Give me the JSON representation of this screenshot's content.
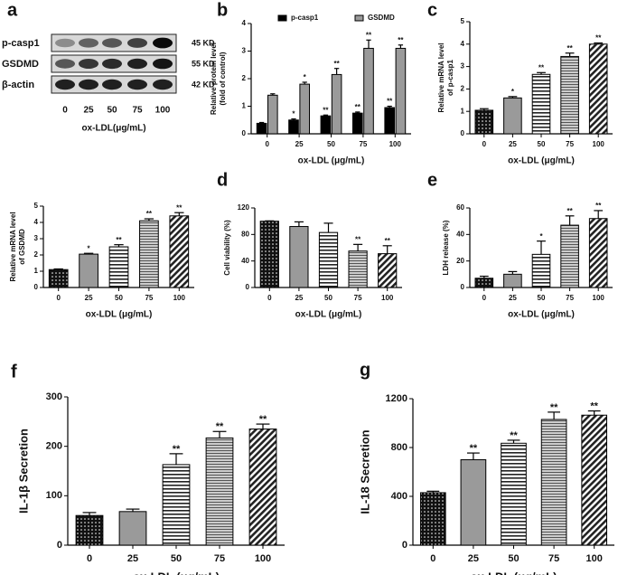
{
  "blot": {
    "panel": "a",
    "rows": [
      {
        "label": "p-casp1",
        "size": "45 KD"
      },
      {
        "label": "GSDMD",
        "size": "55 KD"
      },
      {
        "label": "β-actin",
        "size": "42 KD"
      }
    ],
    "categories": [
      "0",
      "25",
      "50",
      "75",
      "100"
    ],
    "xlabel": "ox-LDL(μg/mL)"
  },
  "chart_data": [
    {
      "type": "bar",
      "panel": "b",
      "ylabel": [
        "Relative protein level",
        "(fold of control)"
      ],
      "xlabel": "ox-LDL (μg/mL)",
      "categories": [
        "0",
        "25",
        "50",
        "75",
        "100"
      ],
      "ylim": [
        0,
        4
      ],
      "yticks": [
        0,
        1,
        2,
        3,
        4
      ],
      "series": [
        {
          "name": "p-casp1",
          "color": "#000000",
          "values": [
            0.38,
            0.5,
            0.65,
            0.75,
            0.95
          ],
          "errors": [
            0.03,
            0.04,
            0.03,
            0.04,
            0.05
          ],
          "significance": [
            null,
            "*",
            "**",
            "**",
            "**"
          ]
        },
        {
          "name": "GSDMD",
          "color": "#9a9a9a",
          "values": [
            1.4,
            1.8,
            2.15,
            3.1,
            3.1
          ],
          "errors": [
            0.05,
            0.07,
            0.22,
            0.3,
            0.12
          ],
          "significance": [
            null,
            "*",
            "**",
            "**",
            "**"
          ]
        }
      ]
    },
    {
      "type": "bar",
      "panel": "c",
      "ylabel": [
        "Relative mRNA level",
        "of p-casp1"
      ],
      "xlabel": "ox-LDL (μg/mL)",
      "categories": [
        "0",
        "25",
        "50",
        "75",
        "100"
      ],
      "ylim": [
        0,
        5
      ],
      "yticks": [
        0,
        1,
        2,
        3,
        4,
        5
      ],
      "values": [
        1.05,
        1.6,
        2.65,
        3.45,
        4.0
      ],
      "errors": [
        0.07,
        0.06,
        0.08,
        0.15,
        0.05
      ],
      "significance": [
        null,
        "*",
        "**",
        "**",
        "**"
      ]
    },
    {
      "type": "bar",
      "ylabel": [
        "Relative mRNA level",
        "of GSDMD"
      ],
      "xlabel": "ox-LDL (μg/mL)",
      "categories": [
        "0",
        "25",
        "50",
        "75",
        "100"
      ],
      "ylim": [
        0,
        5
      ],
      "yticks": [
        0,
        1,
        2,
        3,
        4,
        5
      ],
      "values": [
        1.1,
        2.05,
        2.5,
        4.1,
        4.4
      ],
      "errors": [
        0.04,
        0.05,
        0.13,
        0.12,
        0.2
      ],
      "significance": [
        null,
        "*",
        "**",
        "**",
        "**"
      ]
    },
    {
      "type": "bar",
      "panel": "d",
      "ylabel": [
        "Cell viability (%)"
      ],
      "xlabel": "ox-LDL (μg/mL)",
      "categories": [
        "0",
        "25",
        "50",
        "75",
        "100"
      ],
      "ylim": [
        0,
        120
      ],
      "yticks": [
        0,
        40,
        80,
        120
      ],
      "values": [
        100,
        92,
        83,
        55,
        51
      ],
      "errors": [
        0.5,
        7,
        14,
        10,
        12
      ],
      "significance": [
        null,
        null,
        null,
        "**",
        "**"
      ]
    },
    {
      "type": "bar",
      "panel": "e",
      "ylabel": [
        "LDH release (%)"
      ],
      "xlabel": "ox-LDL (μg/mL)",
      "categories": [
        "0",
        "25",
        "50",
        "75",
        "100"
      ],
      "ylim": [
        0,
        60
      ],
      "yticks": [
        0,
        20,
        40,
        60
      ],
      "values": [
        7,
        10,
        25,
        47,
        52
      ],
      "errors": [
        1.5,
        2,
        10,
        7,
        6
      ],
      "significance": [
        null,
        null,
        "*",
        "**",
        "**"
      ]
    },
    {
      "type": "bar",
      "panel": "f",
      "ylabel": [
        "IL-1β Secretion"
      ],
      "xlabel": "ox-LDL (μg/mL)",
      "categories": [
        "0",
        "25",
        "50",
        "75",
        "100"
      ],
      "ylim": [
        0,
        300
      ],
      "yticks": [
        0,
        100,
        200,
        300
      ],
      "values": [
        60,
        68,
        163,
        217,
        235
      ],
      "errors": [
        6,
        5,
        22,
        13,
        10
      ],
      "significance": [
        null,
        null,
        "**",
        "**",
        "**"
      ]
    },
    {
      "type": "bar",
      "panel": "g",
      "ylabel": [
        "IL-18 Secretion"
      ],
      "xlabel": "ox-LDL (μg/mL)",
      "categories": [
        "0",
        "25",
        "50",
        "75",
        "100"
      ],
      "ylim": [
        0,
        1200
      ],
      "yticks": [
        0,
        400,
        800,
        1200
      ],
      "values": [
        430,
        700,
        835,
        1030,
        1065
      ],
      "errors": [
        12,
        55,
        25,
        60,
        35
      ],
      "significance": [
        null,
        "**",
        "**",
        "**",
        "**"
      ]
    }
  ]
}
